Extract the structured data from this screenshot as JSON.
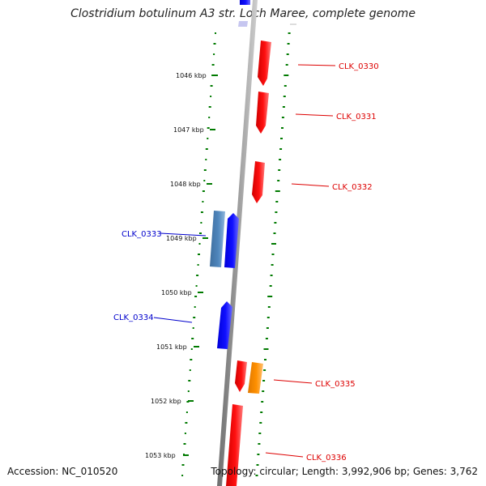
{
  "title": "Clostridium botulinum A3 str. Loch Maree, complete genome",
  "accession": "Accession: NC_010520",
  "topology": "Topology: circular; Length: 3,992,906 bp; Genes: 3,762",
  "scale_labels": [
    "1046 kbp",
    "1047 kbp",
    "1048 kbp",
    "1049 kbp",
    "1050 kbp",
    "1051 kbp",
    "1052 kbp",
    "1053 kbp"
  ],
  "genes": [
    {
      "label": "CLK_0330",
      "color": "#ff0000"
    },
    {
      "label": "CLK_0331",
      "color": "#ff0000"
    },
    {
      "label": "CLK_0332",
      "color": "#ff0000"
    },
    {
      "label": "CLK_0333",
      "color": "#0000cc"
    },
    {
      "label": "CLK_0334",
      "color": "#0000cc"
    },
    {
      "label": "CLK_0335",
      "color": "#ff0000"
    },
    {
      "label": "CLK_0336",
      "color": "#ff0000"
    }
  ],
  "colors": {
    "forward_gene": "#0000ff",
    "reverse_gene": "#ff0000",
    "other_gene": "#4a7fb5",
    "orange_gene": "#ff8c00",
    "backbone": "#808080",
    "gc_ticks": "#007a00"
  }
}
